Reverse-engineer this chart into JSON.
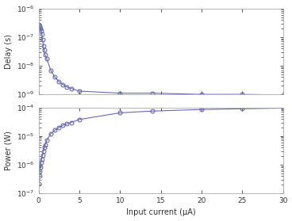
{
  "color": "#6666bb",
  "x_delay": [
    0.05,
    0.1,
    0.15,
    0.2,
    0.3,
    0.4,
    0.5,
    0.6,
    0.7,
    0.8,
    1.0,
    1.5,
    2.0,
    2.5,
    3.0,
    3.5,
    4.0,
    5.0,
    10.0,
    14.0,
    20.0,
    25.0,
    30.0
  ],
  "y_delay": [
    2.8e-07,
    2.5e-07,
    2.2e-07,
    2e-07,
    1.7e-07,
    1.3e-07,
    8e-08,
    5e-08,
    3.5e-08,
    2.5e-08,
    1.8e-08,
    7e-09,
    4e-09,
    2.8e-09,
    2.2e-09,
    1.8e-09,
    1.6e-09,
    1.3e-09,
    1.1e-09,
    1.1e-09,
    1e-09,
    1e-09,
    9.5e-10
  ],
  "x_power": [
    0.05,
    0.1,
    0.15,
    0.2,
    0.3,
    0.4,
    0.5,
    0.6,
    0.7,
    0.8,
    1.0,
    1.5,
    2.0,
    2.5,
    3.0,
    3.5,
    4.0,
    5.0,
    10.0,
    14.0,
    20.0,
    25.0,
    30.0
  ],
  "y_power": [
    2.2e-07,
    4e-07,
    6e-07,
    8e-07,
    1.2e-06,
    1.6e-06,
    2.2e-06,
    3e-06,
    4e-06,
    5e-06,
    7e-06,
    1.2e-05,
    1.6e-05,
    2e-05,
    2.4e-05,
    2.7e-05,
    3e-05,
    3.8e-05,
    6.5e-05,
    7.5e-05,
    8.5e-05,
    9e-05,
    9.5e-05
  ],
  "delay_ylim": [
    1e-09,
    1e-06
  ],
  "power_ylim": [
    1e-07,
    0.0001
  ],
  "xlim": [
    0,
    30
  ],
  "xlabel": "Input current (μA)",
  "ylabel_delay": "Delay (s)",
  "ylabel_power": "Power (W)",
  "xticks": [
    0,
    5,
    10,
    15,
    20,
    25,
    30
  ],
  "bg_color": "#ffffff",
  "spine_color": "#aaaaaa"
}
